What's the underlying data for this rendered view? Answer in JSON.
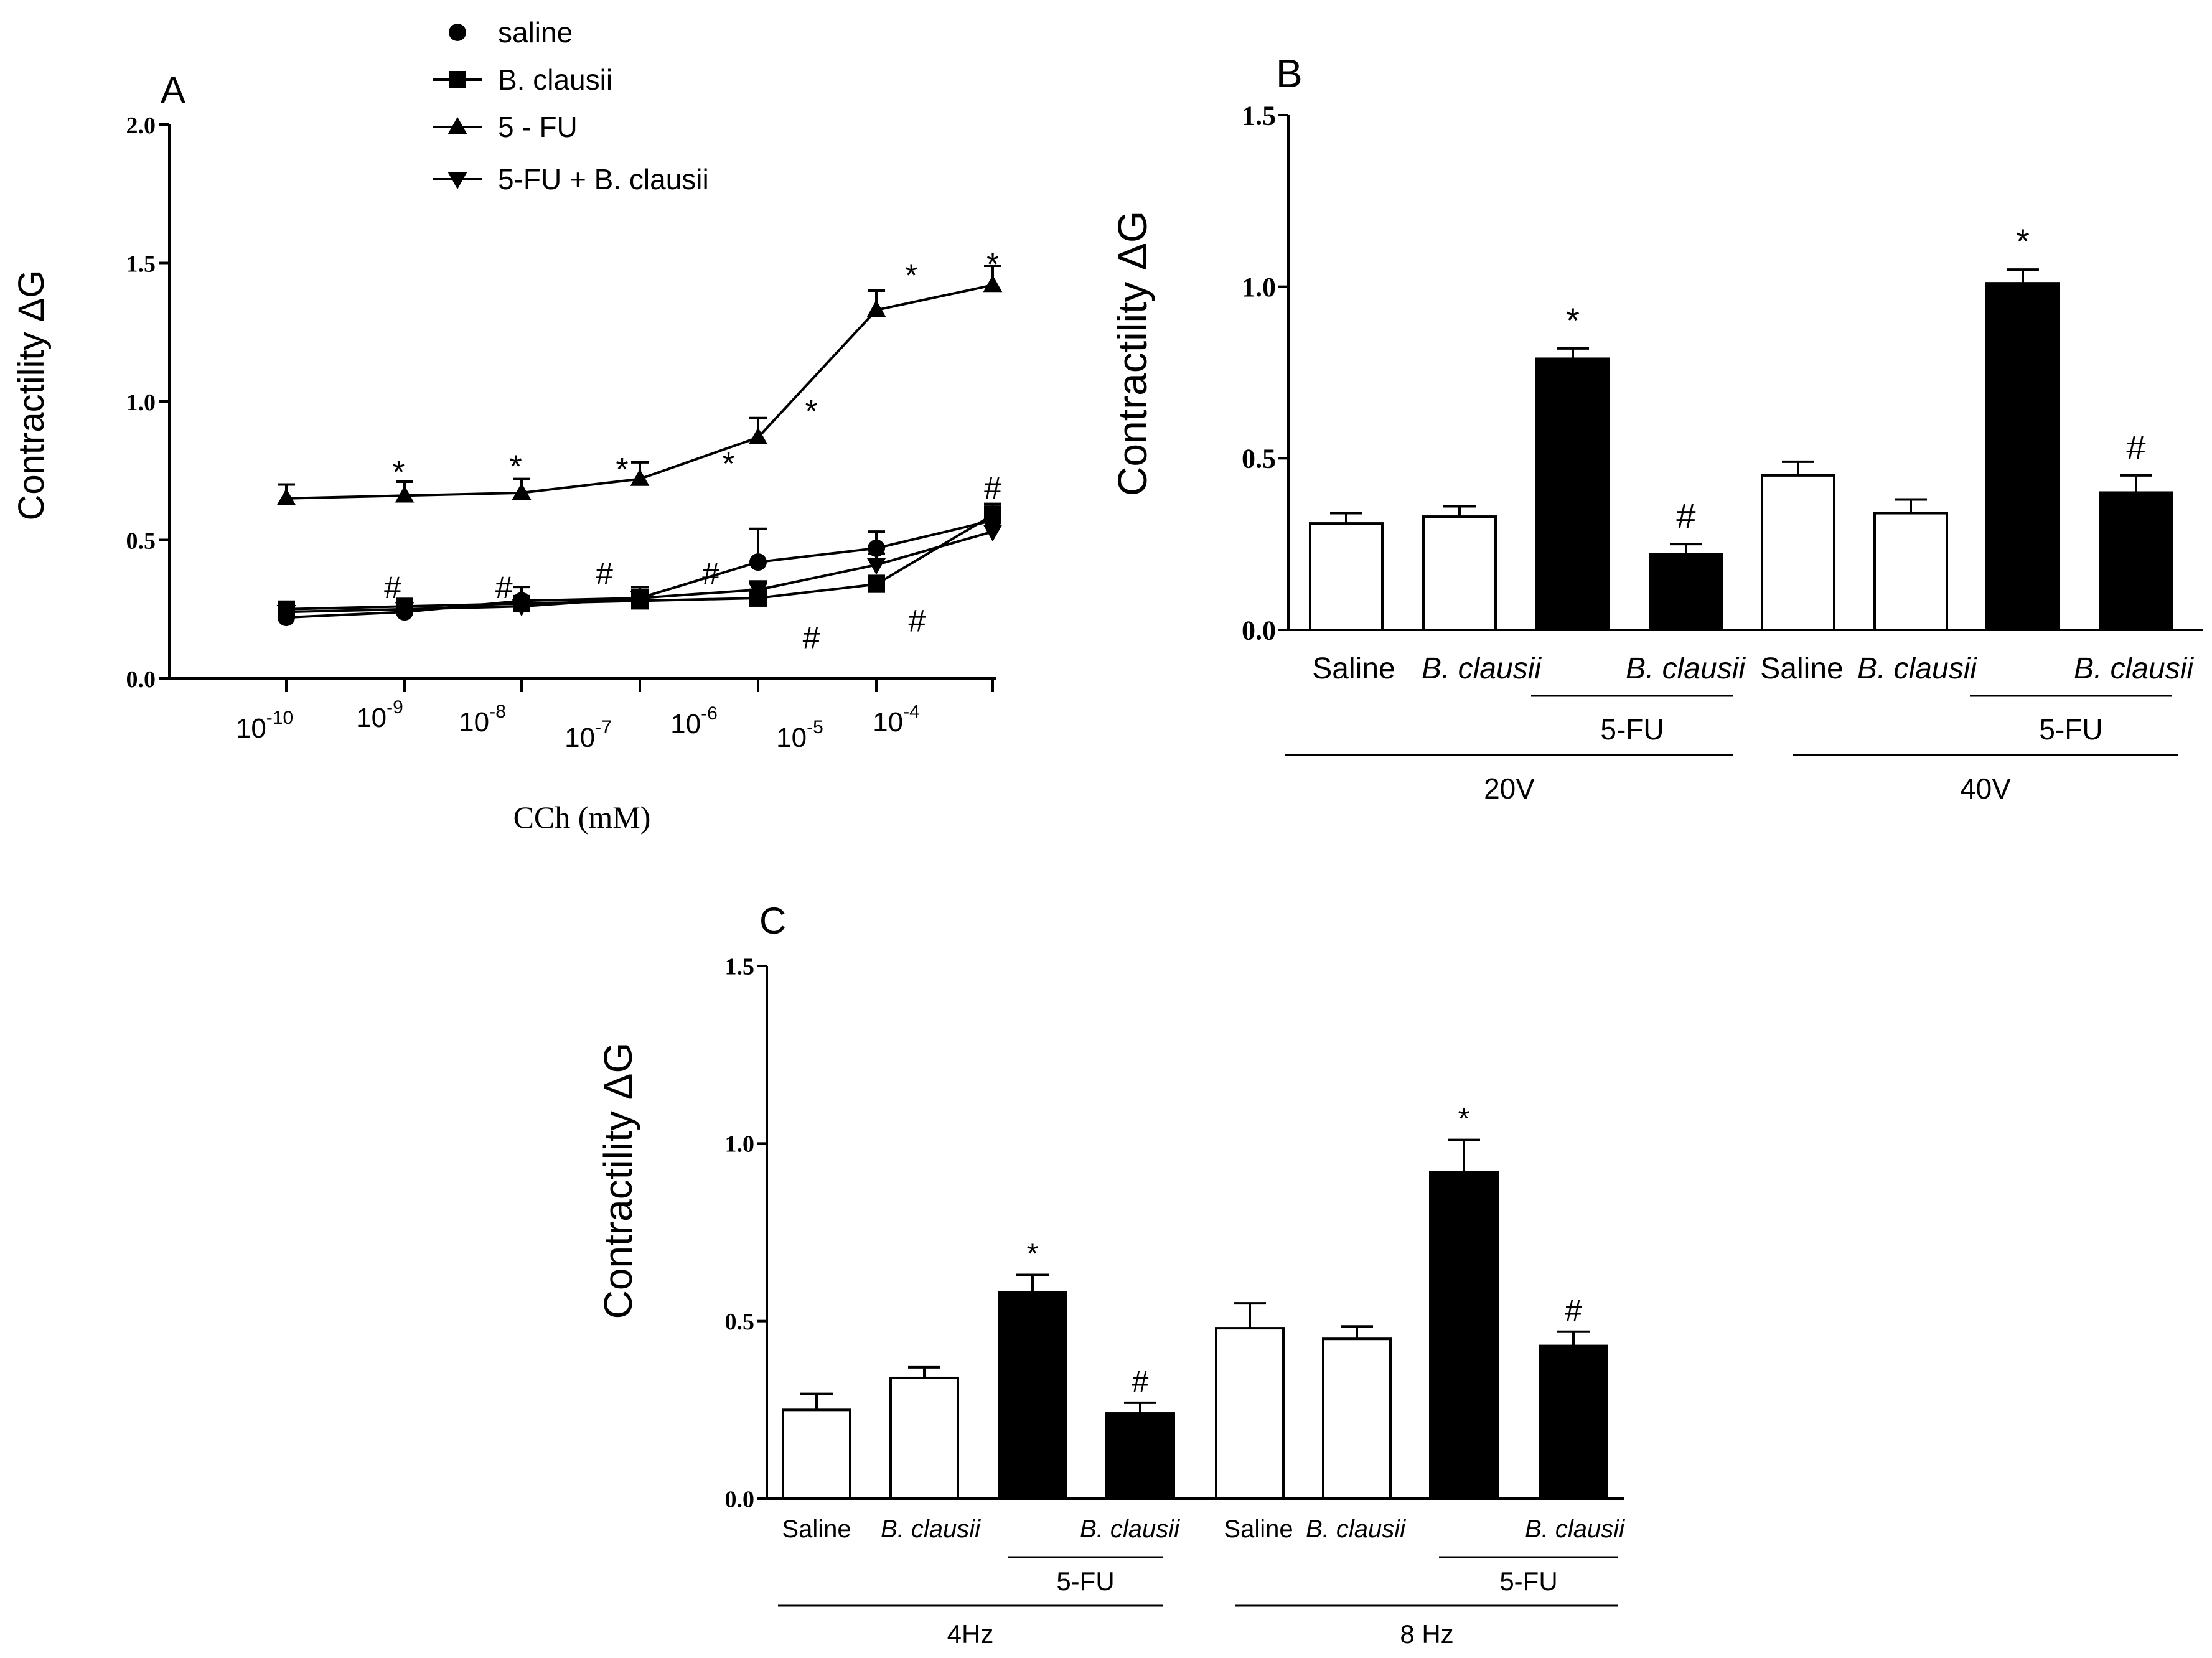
{
  "colors": {
    "ink": "#000000",
    "paper": "#ffffff"
  },
  "chart_data": [
    {
      "panel": "A",
      "type": "line",
      "panel_label": "A",
      "xlabel": "CCh (mM)",
      "ylabel": "Contractility ΔG",
      "ylim": [
        0,
        2.0
      ],
      "yticks": [
        "0.0",
        "0.5",
        "1.0",
        "1.5",
        "2.0"
      ],
      "xticks": [
        {
          "base": "10",
          "exp": "-10"
        },
        {
          "base": "10",
          "exp": "-9"
        },
        {
          "base": "10",
          "exp": "-8"
        },
        {
          "base": "10",
          "exp": "-7"
        },
        {
          "base": "10",
          "exp": "-6"
        },
        {
          "base": "10",
          "exp": "-5"
        },
        {
          "base": "10",
          "exp": "-4"
        }
      ],
      "series": [
        {
          "name": "saline",
          "marker": "circle",
          "values": [
            0.22,
            0.24,
            0.28,
            0.29,
            0.42,
            0.47,
            0.57
          ],
          "err": [
            0.03,
            0.03,
            0.05,
            0.04,
            0.12,
            0.06,
            0.05
          ]
        },
        {
          "name": "B. clausii",
          "marker": "square",
          "values": [
            0.25,
            0.26,
            0.27,
            0.28,
            0.29,
            0.34,
            0.59
          ],
          "err": [
            0.02,
            0.02,
            0.02,
            0.03,
            0.03,
            0.03,
            0.04
          ]
        },
        {
          "name": "5 - FU",
          "marker": "triangle-up",
          "values": [
            0.65,
            0.66,
            0.67,
            0.72,
            0.87,
            1.33,
            1.42
          ],
          "err": [
            0.05,
            0.05,
            0.05,
            0.06,
            0.07,
            0.07,
            0.07
          ]
        },
        {
          "name": "5-FU + B. clausii",
          "marker": "triangle-down",
          "values": [
            0.24,
            0.25,
            0.26,
            0.29,
            0.32,
            0.41,
            0.53
          ],
          "err": [
            0.02,
            0.02,
            0.02,
            0.03,
            0.03,
            0.04,
            0.08
          ]
        }
      ],
      "annotations": {
        "star": "*",
        "hash": "#",
        "star_points": [
          [
            0.95,
            0.75
          ],
          [
            1.95,
            0.77
          ],
          [
            2.85,
            0.76
          ],
          [
            3.75,
            0.78
          ],
          [
            4.45,
            0.97
          ],
          [
            5.3,
            1.46
          ],
          [
            6.2,
            1.5
          ]
        ],
        "hash_points": [
          [
            0.9,
            0.33
          ],
          [
            1.85,
            0.33
          ],
          [
            2.7,
            0.38
          ],
          [
            3.6,
            0.38
          ],
          [
            4.45,
            0.15
          ],
          [
            5.35,
            0.21
          ],
          [
            6.15,
            0.69
          ]
        ]
      }
    },
    {
      "panel": "B",
      "type": "bar",
      "panel_label": "B",
      "ylabel": "Contractility ΔG",
      "ylim": [
        0,
        1.5
      ],
      "yticks": [
        "0.0",
        "0.5",
        "1.0",
        "1.5"
      ],
      "categories": [
        "Saline",
        "B. clausii",
        "",
        "B. clausii",
        "Saline",
        "B. clausii",
        "",
        "B. clausii"
      ],
      "values": [
        0.31,
        0.33,
        0.79,
        0.22,
        0.45,
        0.34,
        1.01,
        0.4
      ],
      "err": [
        0.03,
        0.03,
        0.03,
        0.03,
        0.04,
        0.04,
        0.04,
        0.05
      ],
      "fill": [
        "open",
        "open",
        "filled",
        "filled",
        "open",
        "open",
        "filled",
        "filled"
      ],
      "marks": [
        "",
        "",
        "*",
        "#",
        "",
        "",
        "*",
        "#"
      ],
      "italic_labels": [
        false,
        true,
        false,
        true,
        false,
        true,
        false,
        true
      ],
      "subgroup_label": "5-FU",
      "groups": [
        "20V",
        "40V"
      ]
    },
    {
      "panel": "C",
      "type": "bar",
      "panel_label": "C",
      "ylabel": "Contractility ΔG",
      "ylim": [
        0,
        1.5
      ],
      "yticks": [
        "0.0",
        "0.5",
        "1.0",
        "1.5"
      ],
      "categories": [
        "Saline",
        "B. clausii",
        "",
        "B. clausii",
        "Saline",
        "B. clausii",
        "",
        "B. clausii"
      ],
      "values": [
        0.25,
        0.34,
        0.58,
        0.24,
        0.48,
        0.45,
        0.92,
        0.43
      ],
      "err": [
        0.045,
        0.03,
        0.05,
        0.03,
        0.07,
        0.035,
        0.09,
        0.04
      ],
      "fill": [
        "open",
        "open",
        "filled",
        "filled",
        "open",
        "open",
        "filled",
        "filled"
      ],
      "marks": [
        "",
        "",
        "*",
        "#",
        "",
        "",
        "*",
        "#"
      ],
      "italic_labels": [
        false,
        true,
        false,
        true,
        false,
        true,
        false,
        true
      ],
      "subgroup_label": "5-FU",
      "groups": [
        "4Hz",
        "8 Hz"
      ]
    }
  ]
}
